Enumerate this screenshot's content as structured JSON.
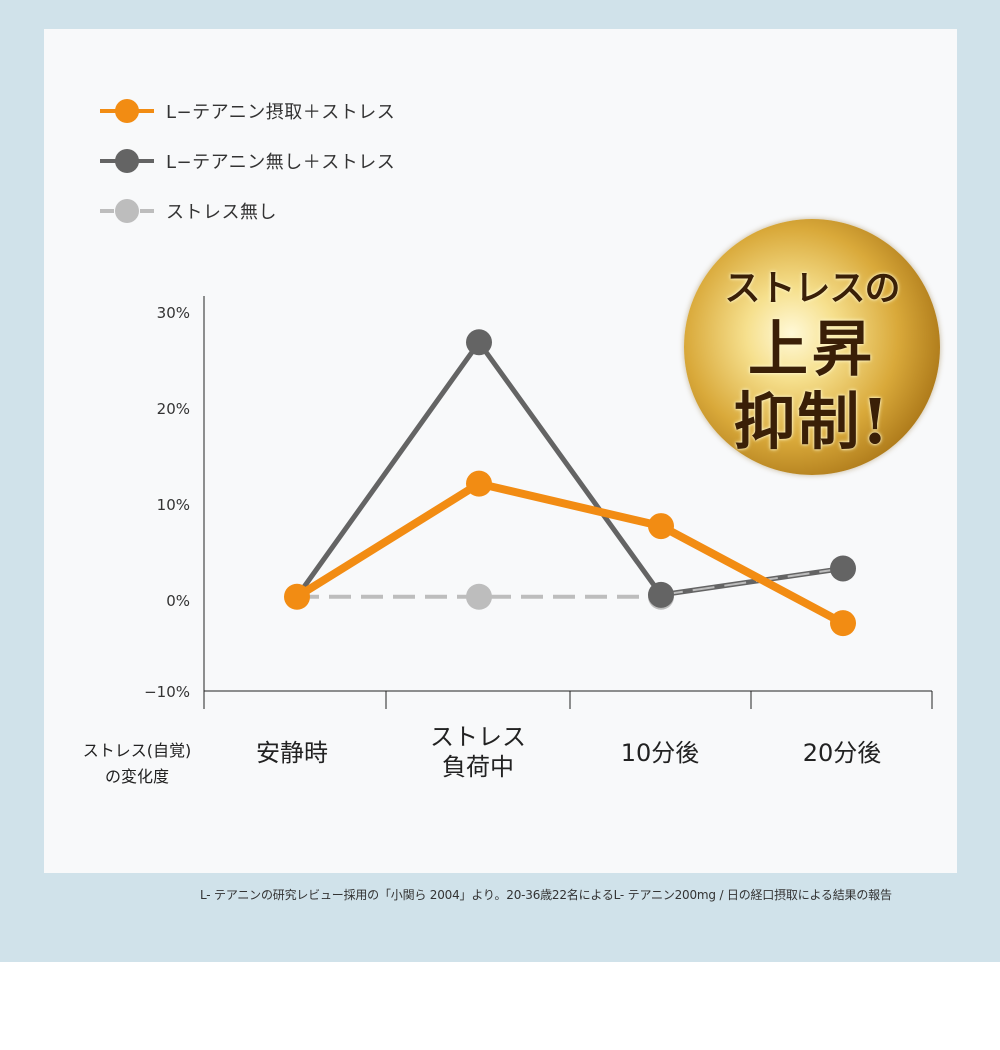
{
  "legend": [
    {
      "label": "L−テアニン摂取＋ストレス",
      "color": "#f28c13",
      "dash": false
    },
    {
      "label": "L−テアニン無し＋ストレス",
      "color": "#646464",
      "dash": false
    },
    {
      "label": "ストレス無し",
      "color": "#bdbdbd",
      "dash": true
    }
  ],
  "y_axis_label_line1": "ストレス(自覚)",
  "y_axis_label_line2": "の変化度",
  "y_ticks": [
    "30%",
    "20%",
    "10%",
    "0%",
    "−10%"
  ],
  "categories": [
    {
      "line1": "安静時",
      "line2": ""
    },
    {
      "line1": "ストレス",
      "line2": "負荷中"
    },
    {
      "line1": "10分後",
      "line2": ""
    },
    {
      "line1": "20分後",
      "line2": ""
    }
  ],
  "badge": {
    "line1": "ストレスの",
    "line2": "上昇",
    "line3": "抑制!"
  },
  "footnote": "L- テアニンの研究レビュー採用の「小関ら 2004」より。20-36歳22名によるL- テアニン200mg / 日の経口摂取による結果の報告",
  "chart_data": {
    "type": "line",
    "categories": [
      "安静時",
      "ストレス負荷中",
      "10分後",
      "20分後"
    ],
    "ylim": [
      -10,
      30
    ],
    "y_ticks": [
      30,
      20,
      10,
      0,
      -10
    ],
    "series": [
      {
        "name": "L−テアニン摂取＋ストレス",
        "color": "#f28c13",
        "values": [
          0,
          12,
          7.5,
          -2.8
        ]
      },
      {
        "name": "L−テアニン無し＋ストレス",
        "color": "#646464",
        "values": [
          0,
          27,
          0.2,
          3
        ]
      },
      {
        "name": "ストレス無し",
        "color": "#bdbdbd",
        "values": [
          0,
          0,
          0,
          null
        ]
      }
    ],
    "grid": false
  }
}
